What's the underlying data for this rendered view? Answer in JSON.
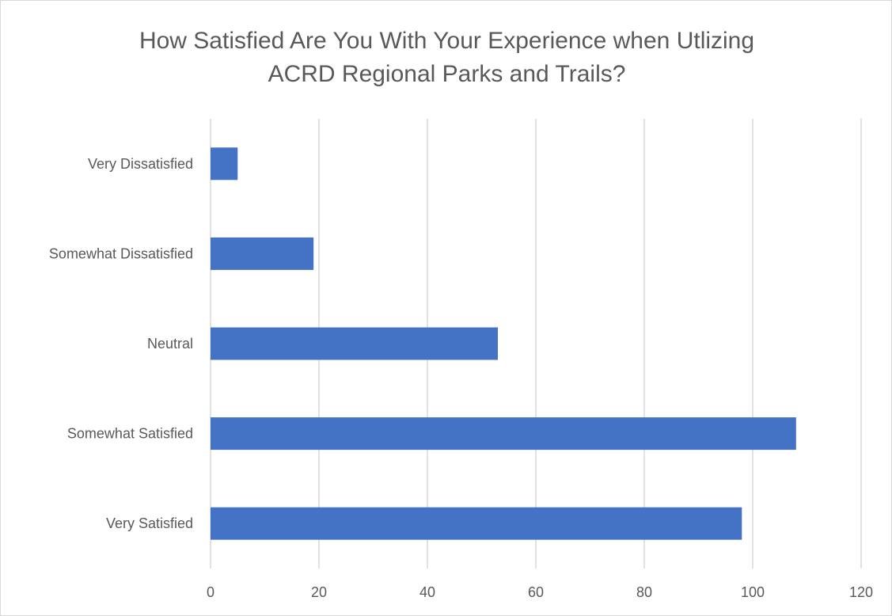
{
  "chart_data": {
    "type": "bar",
    "orientation": "horizontal",
    "title_lines": [
      "How Satisfied Are You With Your Experience when Utlizing",
      "ACRD Regional Parks and Trails?"
    ],
    "categories": [
      "Very Dissatisfied",
      "Somewhat Dissatisfied",
      "Neutral",
      "Somewhat Satisfied",
      "Very Satisfied"
    ],
    "values": [
      5,
      19,
      53,
      108,
      98
    ],
    "xlim": [
      0,
      120
    ],
    "xticks": [
      0,
      20,
      40,
      60,
      80,
      100,
      120
    ],
    "grid": "vertical",
    "legend": "none",
    "bar_color": "#4472c4",
    "grid_color": "#d9d9d9"
  }
}
